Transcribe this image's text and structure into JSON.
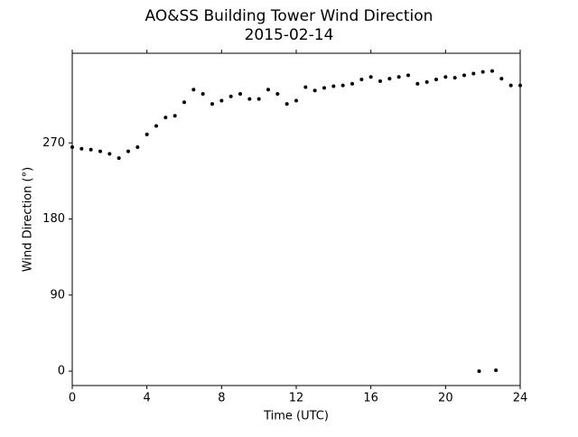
{
  "chart_data": {
    "type": "scatter",
    "title": "AO&SS Building Tower Wind Direction",
    "subtitle": "2015-02-14",
    "x_label": "Time (UTC)",
    "y_label": "Wind Direction (°)",
    "color": "#000000",
    "x": [
      0,
      0.5,
      1,
      1.5,
      2,
      2.5,
      3,
      3.5,
      4,
      4.5,
      5,
      5.5,
      6,
      6.5,
      7,
      7.5,
      8,
      8.5,
      9,
      9.5,
      10,
      10.5,
      11,
      11.5,
      12,
      12.5,
      13,
      13.5,
      14,
      14.5,
      15,
      15.5,
      16,
      16.5,
      17,
      17.5,
      18,
      18.5,
      19,
      19.5,
      20,
      20.5,
      21,
      21.5,
      22,
      22.5,
      23,
      23.5,
      24,
      21.8,
      22.7
    ],
    "values": [
      265,
      263,
      262,
      260,
      257,
      252,
      260,
      265,
      280,
      290,
      300,
      302,
      318,
      333,
      328,
      316,
      320,
      325,
      328,
      322,
      322,
      333,
      328,
      316,
      320,
      336,
      332,
      335,
      337,
      338,
      340,
      345,
      348,
      343,
      346,
      348,
      350,
      340,
      342,
      345,
      348,
      347,
      350,
      352,
      354,
      355,
      346,
      338,
      338,
      0,
      1
    ],
    "xlim": [
      0,
      24
    ],
    "xticks": [
      0,
      4,
      8,
      12,
      16,
      20,
      24
    ],
    "ylim": [
      -17,
      376
    ],
    "yticks": [
      0,
      90,
      180,
      270
    ]
  }
}
